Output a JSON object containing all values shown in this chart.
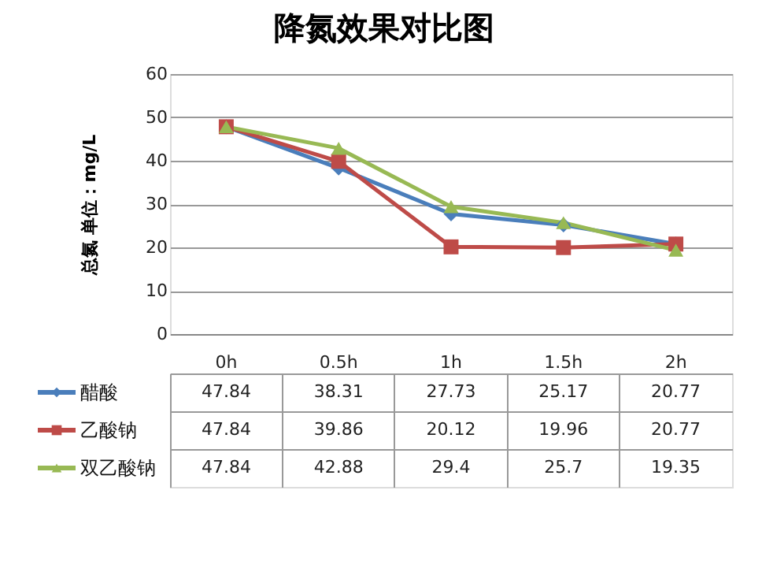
{
  "chart_data": {
    "type": "line",
    "title": "降氮效果对比图",
    "ylabel": "总氮  单位：mg/L",
    "categories": [
      "0h",
      "0.5h",
      "1h",
      "1.5h",
      "2h"
    ],
    "series": [
      {
        "name": "醋酸",
        "color": "#4a7ebb",
        "marker": "diamond",
        "values": [
          47.84,
          38.31,
          27.73,
          25.17,
          20.77
        ]
      },
      {
        "name": "乙酸钠",
        "color": "#be4b48",
        "marker": "square",
        "values": [
          47.84,
          39.86,
          20.12,
          19.96,
          20.77
        ]
      },
      {
        "name": "双乙酸钠",
        "color": "#98b954",
        "marker": "triangle",
        "values": [
          47.84,
          42.88,
          29.4,
          25.7,
          19.35
        ]
      }
    ],
    "ylim": [
      0,
      60
    ],
    "yticks": [
      0,
      10,
      20,
      30,
      40,
      50,
      60
    ],
    "grid": "y",
    "legend": "bottom left",
    "data_labels": true,
    "line_style": "solid"
  }
}
